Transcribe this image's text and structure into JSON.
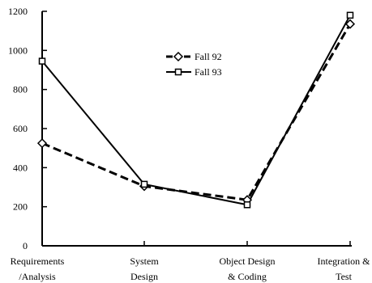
{
  "chart_data": {
    "type": "line",
    "title": "",
    "xlabel": "",
    "ylabel": "",
    "categories": [
      [
        "Requirements",
        "/Analysis"
      ],
      [
        "System",
        "Design"
      ],
      [
        "Object Design",
        "& Coding"
      ],
      [
        "Integration &",
        "Test"
      ]
    ],
    "ylim": [
      0,
      1200
    ],
    "yticks": [
      "0",
      "200",
      "400",
      "600",
      "800",
      "1000",
      "1200"
    ],
    "grid": false,
    "legend_position": "top-center",
    "series": [
      {
        "name": "Fall 92",
        "values": [
          525,
          305,
          235,
          1135
        ],
        "marker": "diamond",
        "line_style": "dashed",
        "color": "#000000"
      },
      {
        "name": "Fall 93",
        "values": [
          945,
          315,
          210,
          1180
        ],
        "marker": "square",
        "line_style": "solid",
        "color": "#000000"
      }
    ]
  }
}
